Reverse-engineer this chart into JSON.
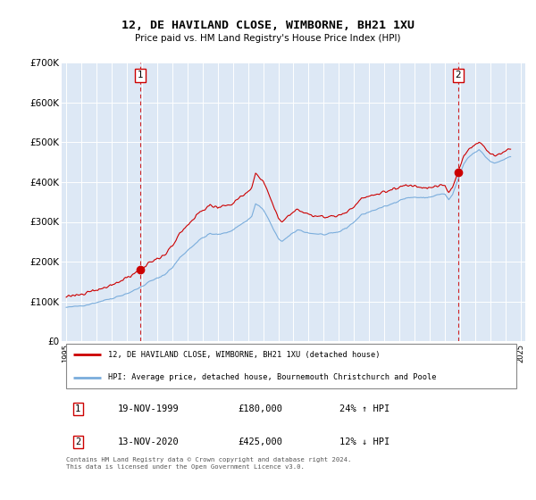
{
  "title": "12, DE HAVILAND CLOSE, WIMBORNE, BH21 1XU",
  "subtitle": "Price paid vs. HM Land Registry's House Price Index (HPI)",
  "background_color": "#dde8f5",
  "line1_color": "#cc0000",
  "line2_color": "#7aaddc",
  "marker1_year": 1999.88,
  "marker1_value": 180000,
  "marker2_year": 2020.87,
  "marker2_value": 425000,
  "ylim": [
    0,
    700000
  ],
  "xlim": [
    1994.7,
    2025.3
  ],
  "yticks": [
    0,
    100000,
    200000,
    300000,
    400000,
    500000,
    600000,
    700000
  ],
  "ytick_labels": [
    "£0",
    "£100K",
    "£200K",
    "£300K",
    "£400K",
    "£500K",
    "£600K",
    "£700K"
  ],
  "legend_line1": "12, DE HAVILAND CLOSE, WIMBORNE, BH21 1XU (detached house)",
  "legend_line2": "HPI: Average price, detached house, Bournemouth Christchurch and Poole",
  "table_rows": [
    [
      "1",
      "19-NOV-1999",
      "£180,000",
      "24% ↑ HPI"
    ],
    [
      "2",
      "13-NOV-2020",
      "£425,000",
      "12% ↓ HPI"
    ]
  ],
  "footer": "Contains HM Land Registry data © Crown copyright and database right 2024.\nThis data is licensed under the Open Government Licence v3.0."
}
